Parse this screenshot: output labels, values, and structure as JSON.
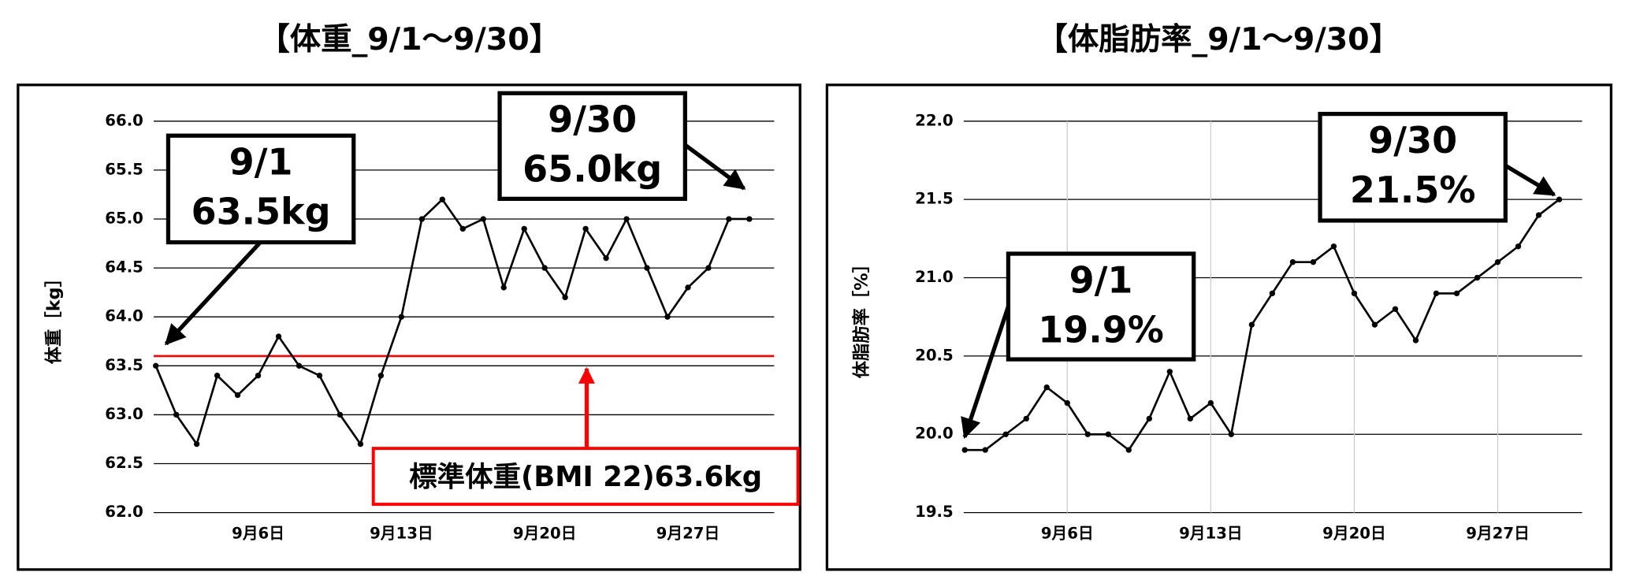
{
  "chart_data": [
    {
      "type": "line",
      "title": "【体重_9/1〜9/30】",
      "ylabel": "体重［kg］",
      "categories": [
        null,
        null,
        null,
        null,
        null,
        "9月6日",
        null,
        null,
        null,
        null,
        null,
        null,
        "9月13日",
        null,
        null,
        null,
        null,
        null,
        null,
        "9月20日",
        null,
        null,
        null,
        null,
        null,
        null,
        "9月27日",
        null,
        null,
        null
      ],
      "values": [
        63.5,
        63.0,
        62.7,
        63.4,
        63.2,
        63.4,
        63.8,
        63.5,
        63.4,
        63.0,
        62.7,
        63.4,
        64.0,
        65.0,
        65.2,
        64.9,
        65.0,
        64.3,
        64.9,
        64.5,
        64.2,
        64.9,
        64.6,
        65.0,
        64.5,
        64.0,
        64.3,
        64.5,
        65.0,
        65.0
      ],
      "color": "#000000",
      "ylim": [
        62,
        66
      ],
      "yticks": [
        {
          "value": 62,
          "label": "62.0"
        },
        {
          "value": 62.5,
          "label": "62.5"
        },
        {
          "value": 63,
          "label": "63.0"
        },
        {
          "value": 63.5,
          "label": "63.5"
        },
        {
          "value": 64,
          "label": "64.0"
        },
        {
          "value": 64.5,
          "label": "64.5"
        },
        {
          "value": 65,
          "label": "65.0"
        },
        {
          "value": 65.5,
          "label": "65.5"
        },
        {
          "value": 66,
          "label": "66.0"
        }
      ],
      "grid": true,
      "xgrid": false,
      "hline": {
        "value": 63.6,
        "color": "#ff0000",
        "label": "標準体重(BMI 22)63.6kg"
      },
      "annotations": [
        {
          "lines": [
            "9/1",
            "63.5kg"
          ]
        },
        {
          "lines": [
            "9/30",
            "65.0kg"
          ]
        }
      ]
    },
    {
      "type": "line",
      "title": "【体脂肪率_9/1〜9/30】",
      "ylabel": "体脂肪率［%］",
      "categories": [
        null,
        null,
        null,
        null,
        null,
        "9月6日",
        null,
        null,
        null,
        null,
        null,
        null,
        "9月13日",
        null,
        null,
        null,
        null,
        null,
        null,
        "9月20日",
        null,
        null,
        null,
        null,
        null,
        null,
        "9月27日",
        null,
        null,
        null
      ],
      "values": [
        19.9,
        19.9,
        20.0,
        20.1,
        20.3,
        20.2,
        20.0,
        20.0,
        19.9,
        20.1,
        20.4,
        20.1,
        20.2,
        20.0,
        20.7,
        20.9,
        21.1,
        21.1,
        21.2,
        20.9,
        20.7,
        20.8,
        20.6,
        20.9,
        20.9,
        21.0,
        21.1,
        21.2,
        21.4,
        21.5
      ],
      "color": "#000000",
      "ylim": [
        19.5,
        22
      ],
      "yticks": [
        19.5,
        {
          "value": 20,
          "label": "20.0"
        },
        20.5,
        {
          "value": 21,
          "label": "21.0"
        },
        21.5,
        {
          "value": 22,
          "label": "22.0"
        }
      ],
      "grid": true,
      "xgrid": true,
      "annotations": [
        {
          "lines": [
            "9/30",
            "21.5%"
          ]
        },
        {
          "lines": [
            "9/1",
            "19.9%"
          ]
        }
      ]
    }
  ]
}
